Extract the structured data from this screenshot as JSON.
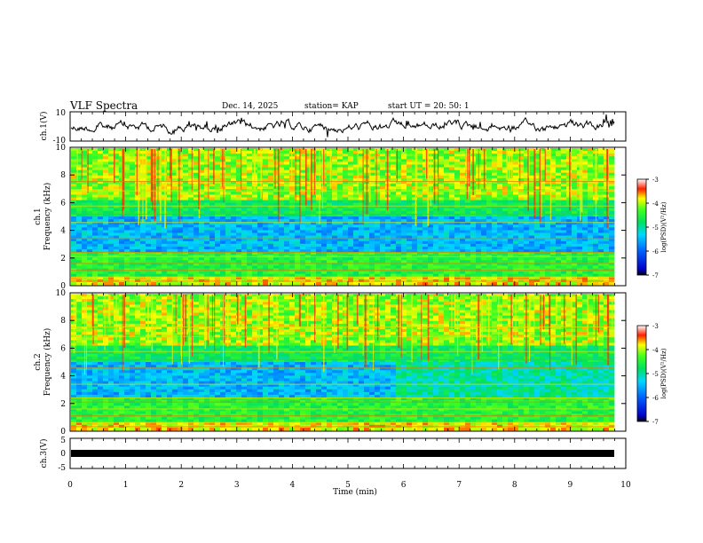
{
  "header": {
    "title": "VLF Spectra",
    "date": "Dec. 14, 2025",
    "station": "station= KAP",
    "start": "start  UT  =   20: 50: 1"
  },
  "chart_data": [
    {
      "type": "line",
      "name": "ch1-waveform",
      "ylabel": "ch.1(V)",
      "ylim": [
        -10,
        10
      ],
      "ytick_labels": [
        "10",
        "-10"
      ]
    },
    {
      "type": "heatmap",
      "name": "ch1-spectrogram",
      "ylabel": "ch.1\nFrequency (kHz)",
      "ylim": [
        0,
        10
      ],
      "yticks": [
        "0",
        "2",
        "4",
        "6",
        "8",
        "10"
      ],
      "colorbar": {
        "label": "log(PSD)(V²/Hz)",
        "ticks": [
          "-3",
          "-4",
          "-5",
          "-6",
          "-7"
        ],
        "range": [
          -7,
          -3
        ]
      }
    },
    {
      "type": "heatmap",
      "name": "ch2-spectrogram",
      "ylabel": "ch.2\nFrequency (kHz)",
      "ylim": [
        0,
        10
      ],
      "yticks": [
        "0",
        "2",
        "4",
        "6",
        "8",
        "10"
      ],
      "colorbar": {
        "label": "log(PSD)(V²/Hz)",
        "ticks": [
          "-3",
          "-4",
          "-5",
          "-6",
          "-7"
        ],
        "range": [
          -7,
          -3
        ]
      }
    },
    {
      "type": "line",
      "name": "ch3-waveform",
      "ylabel": "ch.3(V)",
      "ylim": [
        -5,
        5
      ],
      "ytick_labels": [
        "5",
        "0",
        "-5"
      ]
    }
  ],
  "xaxis": {
    "label": "Time  (min)",
    "xlim": [
      0,
      10
    ],
    "ticks": [
      "0",
      "1",
      "2",
      "3",
      "4",
      "5",
      "6",
      "7",
      "8",
      "9",
      "10"
    ]
  },
  "colors": {
    "frame": "#000000",
    "background": "#ffffff"
  }
}
